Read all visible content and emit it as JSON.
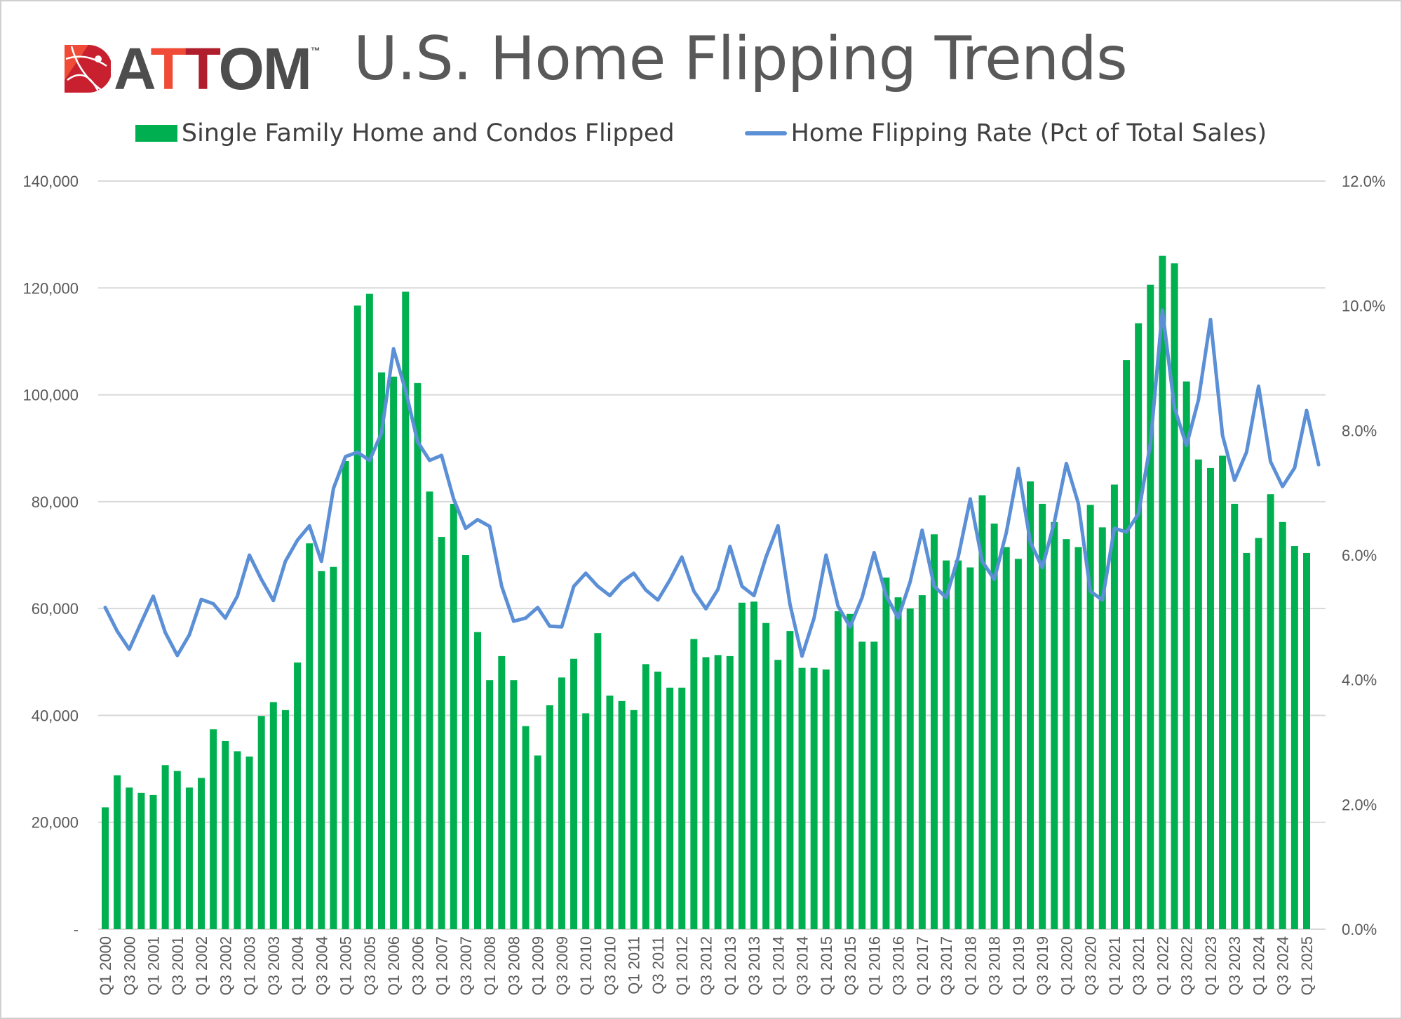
{
  "header": {
    "logo_text": "ATTOM",
    "logo_tm": "™",
    "title": "U.S. Home Flipping Trends"
  },
  "colors": {
    "bars": "#00b050",
    "line": "#5b8fd6",
    "grid": "#d9d9d9",
    "text": "#595959"
  },
  "chart_data": {
    "type": "bar+line",
    "title": "U.S. Home Flipping Trends",
    "legend_placement": "top",
    "grid": true,
    "categories": [
      "Q1 2000",
      "Q2 2000",
      "Q3 2000",
      "Q4 2000",
      "Q1 2001",
      "Q2 2001",
      "Q3 2001",
      "Q4 2001",
      "Q1 2002",
      "Q2 2002",
      "Q3 2002",
      "Q4 2002",
      "Q1 2003",
      "Q2 2003",
      "Q3 2003",
      "Q4 2003",
      "Q1 2004",
      "Q2 2004",
      "Q3 2004",
      "Q4 2004",
      "Q1 2005",
      "Q2 2005",
      "Q3 2005",
      "Q4 2005",
      "Q1 2006",
      "Q2 2006",
      "Q3 2006",
      "Q4 2006",
      "Q1 2007",
      "Q2 2007",
      "Q3 2007",
      "Q4 2007",
      "Q1 2008",
      "Q2 2008",
      "Q3 2008",
      "Q4 2008",
      "Q1 2009",
      "Q2 2009",
      "Q3 2009",
      "Q4 2009",
      "Q1 2010",
      "Q2 2010",
      "Q3 2010",
      "Q4 2010",
      "Q1 2011",
      "Q2 2011",
      "Q3 2011",
      "Q4 2011",
      "Q1 2012",
      "Q2 2012",
      "Q3 2012",
      "Q4 2012",
      "Q1 2013",
      "Q2 2013",
      "Q3 2013",
      "Q4 2013",
      "Q1 2014",
      "Q2 2014",
      "Q3 2014",
      "Q4 2014",
      "Q1 2015",
      "Q2 2015",
      "Q3 2015",
      "Q4 2015",
      "Q1 2016",
      "Q2 2016",
      "Q3 2016",
      "Q4 2016",
      "Q1 2017",
      "Q2 2017",
      "Q3 2017",
      "Q4 2017",
      "Q1 2018",
      "Q2 2018",
      "Q3 2018",
      "Q4 2018",
      "Q1 2019",
      "Q2 2019",
      "Q3 2019",
      "Q4 2019",
      "Q1 2020",
      "Q2 2020",
      "Q3 2020",
      "Q4 2020",
      "Q1 2021",
      "Q2 2021",
      "Q3 2021",
      "Q4 2021",
      "Q1 2022",
      "Q2 2022",
      "Q3 2022",
      "Q4 2022",
      "Q1 2023",
      "Q2 2023",
      "Q3 2023",
      "Q4 2023",
      "Q1 2024",
      "Q2 2024",
      "Q3 2024",
      "Q4 2024",
      "Q1 2025",
      "Q2 2025"
    ],
    "series": [
      {
        "name": "Single Family Home and Condos Flipped",
        "type": "bar",
        "axis": "left",
        "values": [
          22800,
          28800,
          26500,
          25500,
          25100,
          30700,
          29600,
          26500,
          28300,
          37400,
          35200,
          33300,
          32300,
          39900,
          42500,
          41000,
          49900,
          72200,
          67000,
          67800,
          87600,
          116700,
          118900,
          104200,
          103400,
          119300,
          102200,
          81900,
          73400,
          79600,
          70000,
          55600,
          46600,
          51100,
          46600,
          38000,
          32500,
          41900,
          47100,
          50600,
          40400,
          55400,
          43700,
          42700,
          41000,
          49600,
          48200,
          45200,
          45200,
          54300,
          50900,
          51300,
          51100,
          61100,
          61300,
          57300,
          50400,
          55800,
          48900,
          48900,
          48600,
          59500,
          59000,
          53800,
          53800,
          65800,
          62100,
          60000,
          62500,
          73900,
          69000,
          69000,
          67700,
          81200,
          75900,
          71500,
          69300,
          83800,
          79600,
          76200,
          73000,
          71500,
          79400,
          75200,
          83200,
          106500,
          113400,
          120600,
          126000,
          124600,
          102500,
          87900,
          86300,
          88600,
          79600,
          70400,
          73200,
          81400,
          76200,
          71700,
          70400,
          null
        ]
      },
      {
        "name": "Home Flipping Rate (Pct of Total Sales)",
        "type": "line",
        "axis": "right",
        "values": [
          5.16,
          4.78,
          4.49,
          4.92,
          5.34,
          4.76,
          4.39,
          4.72,
          5.29,
          5.22,
          4.99,
          5.34,
          6.0,
          5.61,
          5.27,
          5.9,
          6.24,
          6.47,
          5.9,
          7.07,
          7.58,
          7.65,
          7.52,
          7.96,
          9.31,
          8.64,
          7.82,
          7.52,
          7.6,
          6.9,
          6.43,
          6.57,
          6.46,
          5.5,
          4.94,
          4.99,
          5.16,
          4.86,
          4.85,
          5.5,
          5.71,
          5.5,
          5.35,
          5.57,
          5.71,
          5.44,
          5.28,
          5.6,
          5.97,
          5.42,
          5.14,
          5.45,
          6.14,
          5.5,
          5.35,
          5.97,
          6.47,
          5.21,
          4.38,
          4.99,
          6.0,
          5.18,
          4.85,
          5.32,
          6.04,
          5.35,
          4.99,
          5.57,
          6.4,
          5.5,
          5.32,
          5.97,
          6.9,
          5.9,
          5.61,
          6.36,
          7.39,
          6.21,
          5.8,
          6.53,
          7.47,
          6.83,
          5.42,
          5.28,
          6.43,
          6.37,
          6.66,
          7.79,
          9.93,
          8.36,
          7.76,
          8.49,
          9.78,
          7.92,
          7.2,
          7.65,
          8.71,
          7.5,
          7.1,
          7.4,
          8.32,
          7.45
        ]
      }
    ],
    "y_left": {
      "lim": [
        0,
        140000
      ],
      "tick_labels": [
        "-",
        "20,000",
        "40,000",
        "60,000",
        "80,000",
        "100,000",
        "120,000",
        "140,000"
      ]
    },
    "y_right": {
      "lim": [
        0,
        12
      ],
      "unit": "%",
      "tick_labels": [
        "0.0%",
        "2.0%",
        "4.0%",
        "6.0%",
        "8.0%",
        "10.0%",
        "12.0%"
      ]
    },
    "x_tick_labels": [
      "Q1 2000",
      "Q3 2000",
      "Q1 2001",
      "Q3 2001",
      "Q1 2002",
      "Q3 2002",
      "Q1 2003",
      "Q3 2003",
      "Q1 2004",
      "Q3 2004",
      "Q1 2005",
      "Q3 2005",
      "Q1 2006",
      "Q3 2006",
      "Q1 2007",
      "Q3 2007",
      "Q1 2008",
      "Q3 2008",
      "Q1 2009",
      "Q3 2009",
      "Q1 2010",
      "Q3 2010",
      "Q1 2011",
      "Q3 2011",
      "Q1 2012",
      "Q3 2012",
      "Q1 2013",
      "Q3 2013",
      "Q1 2014",
      "Q3 2014",
      "Q1 2015",
      "Q3 2015",
      "Q1 2016",
      "Q3 2016",
      "Q1 2017",
      "Q3 2017",
      "Q1 2018",
      "Q3 2018",
      "Q1 2019",
      "Q3 2019",
      "Q1 2020",
      "Q3 2020",
      "Q1 2021",
      "Q3 2021",
      "Q1 2022",
      "Q3 2022",
      "Q1 2023",
      "Q3 2023",
      "Q1 2024",
      "Q3 2024",
      "Q1 2025"
    ]
  }
}
